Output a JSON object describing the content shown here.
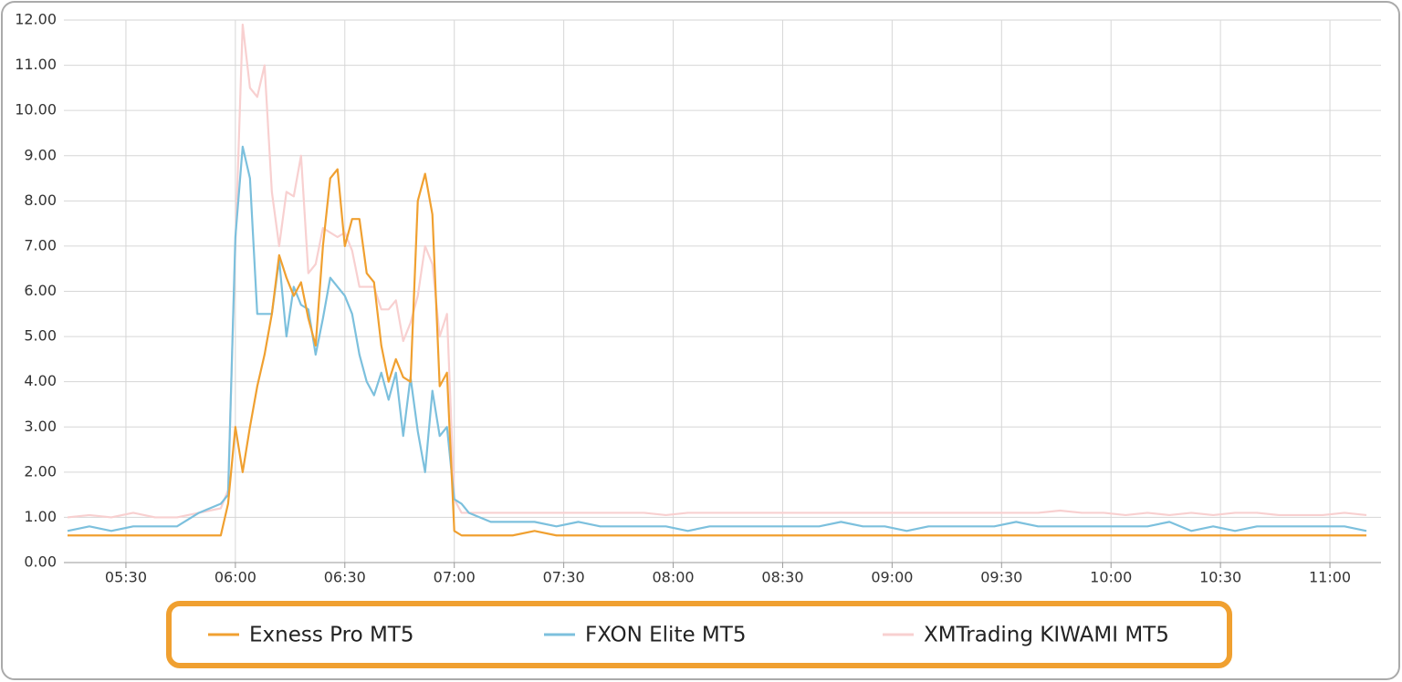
{
  "chart_data": {
    "type": "line",
    "x": [
      "05:14",
      "05:20",
      "05:26",
      "05:32",
      "05:38",
      "05:44",
      "05:50",
      "05:56",
      "05:58",
      "06:00",
      "06:02",
      "06:04",
      "06:06",
      "06:08",
      "06:10",
      "06:12",
      "06:14",
      "06:16",
      "06:18",
      "06:20",
      "06:22",
      "06:24",
      "06:26",
      "06:28",
      "06:30",
      "06:32",
      "06:34",
      "06:36",
      "06:38",
      "06:40",
      "06:42",
      "06:44",
      "06:46",
      "06:48",
      "06:50",
      "06:52",
      "06:54",
      "06:56",
      "06:58",
      "07:00",
      "07:02",
      "07:04",
      "07:10",
      "07:16",
      "07:22",
      "07:28",
      "07:34",
      "07:40",
      "07:46",
      "07:52",
      "07:58",
      "08:04",
      "08:10",
      "08:16",
      "08:22",
      "08:28",
      "08:34",
      "08:40",
      "08:46",
      "08:52",
      "08:58",
      "09:04",
      "09:10",
      "09:16",
      "09:22",
      "09:28",
      "09:34",
      "09:40",
      "09:46",
      "09:52",
      "09:58",
      "10:04",
      "10:10",
      "10:16",
      "10:22",
      "10:28",
      "10:34",
      "10:40",
      "10:46",
      "10:52",
      "10:58",
      "11:04",
      "11:10"
    ],
    "series": [
      {
        "name": "Exness Pro MT5",
        "color": "#f0a030",
        "values": [
          0.6,
          0.6,
          0.6,
          0.6,
          0.6,
          0.6,
          0.6,
          0.6,
          1.3,
          3.0,
          2.0,
          3.0,
          3.9,
          4.6,
          5.5,
          6.8,
          6.3,
          5.9,
          6.2,
          5.4,
          4.8,
          7.0,
          8.5,
          8.7,
          7.0,
          7.6,
          7.6,
          6.4,
          6.2,
          4.8,
          4.0,
          4.5,
          4.1,
          4.0,
          8.0,
          8.6,
          7.7,
          3.9,
          4.2,
          0.7,
          0.6,
          0.6,
          0.6,
          0.6,
          0.7,
          0.6,
          0.6,
          0.6,
          0.6,
          0.6,
          0.6,
          0.6,
          0.6,
          0.6,
          0.6,
          0.6,
          0.6,
          0.6,
          0.6,
          0.6,
          0.6,
          0.6,
          0.6,
          0.6,
          0.6,
          0.6,
          0.6,
          0.6,
          0.6,
          0.6,
          0.6,
          0.6,
          0.6,
          0.6,
          0.6,
          0.6,
          0.6,
          0.6,
          0.6,
          0.6,
          0.6,
          0.6,
          0.6
        ]
      },
      {
        "name": "FXON Elite MT5",
        "color": "#7cc0dd",
        "values": [
          0.7,
          0.8,
          0.7,
          0.8,
          0.8,
          0.8,
          1.1,
          1.3,
          1.5,
          7.2,
          9.2,
          8.5,
          5.5,
          5.5,
          5.5,
          6.7,
          5.0,
          6.1,
          5.7,
          5.6,
          4.6,
          5.4,
          6.3,
          6.1,
          5.9,
          5.5,
          4.6,
          4.0,
          3.7,
          4.2,
          3.6,
          4.2,
          2.8,
          4.1,
          2.9,
          2.0,
          3.8,
          2.8,
          3.0,
          1.4,
          1.3,
          1.1,
          0.9,
          0.9,
          0.9,
          0.8,
          0.9,
          0.8,
          0.8,
          0.8,
          0.8,
          0.7,
          0.8,
          0.8,
          0.8,
          0.8,
          0.8,
          0.8,
          0.9,
          0.8,
          0.8,
          0.7,
          0.8,
          0.8,
          0.8,
          0.8,
          0.9,
          0.8,
          0.8,
          0.8,
          0.8,
          0.8,
          0.8,
          0.9,
          0.7,
          0.8,
          0.7,
          0.8,
          0.8,
          0.8,
          0.8,
          0.8,
          0.7
        ]
      },
      {
        "name": "XMTrading KIWAMI MT5",
        "color": "#f8d0d0",
        "values": [
          1.0,
          1.05,
          1.0,
          1.1,
          1.0,
          1.0,
          1.1,
          1.2,
          1.6,
          7.0,
          11.9,
          10.5,
          10.3,
          11.0,
          8.2,
          7.0,
          8.2,
          8.1,
          9.0,
          6.4,
          6.6,
          7.4,
          7.3,
          7.2,
          7.3,
          6.9,
          6.1,
          6.1,
          6.1,
          5.6,
          5.6,
          5.8,
          4.9,
          5.3,
          5.9,
          7.0,
          6.6,
          5.0,
          5.5,
          1.4,
          1.1,
          1.1,
          1.1,
          1.1,
          1.1,
          1.1,
          1.1,
          1.1,
          1.1,
          1.1,
          1.05,
          1.1,
          1.1,
          1.1,
          1.1,
          1.1,
          1.1,
          1.1,
          1.1,
          1.1,
          1.1,
          1.1,
          1.1,
          1.1,
          1.1,
          1.1,
          1.1,
          1.1,
          1.15,
          1.1,
          1.1,
          1.05,
          1.1,
          1.05,
          1.1,
          1.05,
          1.1,
          1.1,
          1.05,
          1.05,
          1.05,
          1.1,
          1.05
        ]
      }
    ],
    "xlim": [
      "05:13",
      "11:14"
    ],
    "xticks": [
      "05:30",
      "06:00",
      "06:30",
      "07:00",
      "07:30",
      "08:00",
      "08:30",
      "09:00",
      "09:30",
      "10:00",
      "10:30",
      "11:00"
    ],
    "ylim": [
      0,
      12
    ],
    "yticks": [
      {
        "value": 0,
        "label": "0.00"
      },
      {
        "value": 1,
        "label": "1.00"
      },
      {
        "value": 2,
        "label": "2.00"
      },
      {
        "value": 3,
        "label": "3.00"
      },
      {
        "value": 4,
        "label": "4.00"
      },
      {
        "value": 5,
        "label": "5.00"
      },
      {
        "value": 6,
        "label": "6.00"
      },
      {
        "value": 7,
        "label": "7.00"
      },
      {
        "value": 8,
        "label": "8.00"
      },
      {
        "value": 9,
        "label": "9.00"
      },
      {
        "value": 10,
        "label": "10.00"
      },
      {
        "value": 11,
        "label": "11.00"
      },
      {
        "value": 12,
        "label": "12.00"
      }
    ],
    "grid": true,
    "legend": "bottom"
  }
}
